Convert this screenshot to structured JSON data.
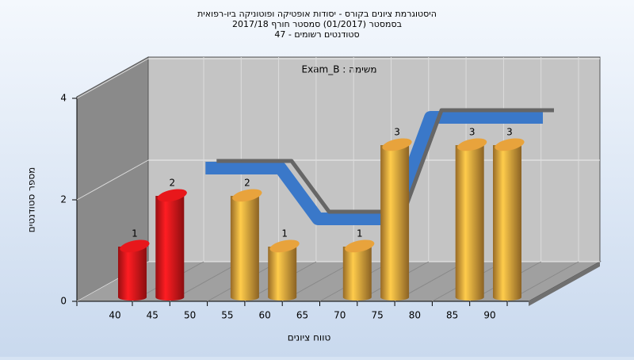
{
  "chart_data": {
    "type": "bar",
    "title": [
      "היסטוגרמת ציונים בקורס - יסודות אופטיקה ופוטוניקה ביו-רפואית",
      "בסמסטר  (01/2017)  סמסטר חורף 2017/18",
      "סטודנטים רשומים - 47"
    ],
    "annotation": "משימה : Exam_B",
    "x_label": "טווח ציונים",
    "y_label": "מספר סטודנטים",
    "categories": [
      "40",
      "45",
      "50",
      "55",
      "60",
      "65",
      "70",
      "75",
      "80",
      "85",
      "90"
    ],
    "series": [
      {
        "type": "bar",
        "values": [
          1,
          2,
          0,
          2,
          1,
          0,
          1,
          3,
          0,
          3,
          3
        ],
        "colors": [
          "#e8171b",
          "#e8171b",
          "#e8a33c",
          "#e8a33c",
          "#e8a33c",
          "#e8a33c",
          "#e8a33c",
          "#e8a33c",
          "#e8a33c",
          "#e8a33c",
          "#e8a33c"
        ]
      },
      {
        "type": "line",
        "color": "#3a78c9",
        "values": [
          null,
          2,
          2,
          2,
          1,
          1,
          1,
          3,
          3,
          3,
          3
        ]
      }
    ],
    "ylim": [
      0,
      4
    ],
    "yticks": [
      0,
      2,
      4
    ],
    "grid": true
  }
}
